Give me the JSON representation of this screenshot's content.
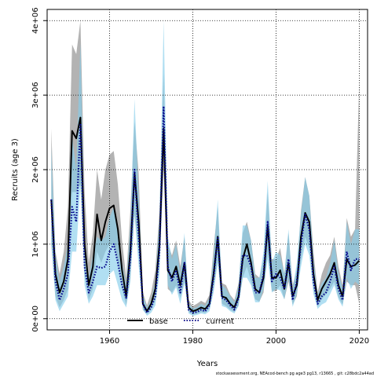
{
  "chart_data": {
    "type": "line",
    "title": "",
    "xlabel": "Years",
    "ylabel": "Recruits (age 3)",
    "xlim": [
      1945,
      2022
    ],
    "ylim": [
      -150000,
      4150000
    ],
    "x_ticks": [
      1960,
      1980,
      2000,
      2020
    ],
    "y_ticks": [
      {
        "value": 0,
        "label": "0e+00"
      },
      {
        "value": 1000000,
        "label": "1e+06"
      },
      {
        "value": 2000000,
        "label": "2e+06"
      },
      {
        "value": 3000000,
        "label": "3e+06"
      },
      {
        "value": 4000000,
        "label": "4e+06"
      }
    ],
    "grid": true,
    "legend_position": "bottom-center",
    "footer": "stockassessment.org,  NEAcod-bench  pg  age3  pg13,  r13665 ,  git:  c28bdc2a44ad",
    "series": [
      {
        "name": "base",
        "style": "solid",
        "color": "#000000",
        "band_color": "#9a9a9a",
        "x": [
          1946,
          1947,
          1948,
          1949,
          1950,
          1951,
          1952,
          1953,
          1954,
          1955,
          1956,
          1957,
          1958,
          1959,
          1960,
          1961,
          1962,
          1963,
          1964,
          1965,
          1966,
          1967,
          1968,
          1969,
          1970,
          1971,
          1972,
          1973,
          1974,
          1975,
          1976,
          1977,
          1978,
          1979,
          1980,
          1981,
          1982,
          1983,
          1984,
          1985,
          1986,
          1987,
          1988,
          1989,
          1990,
          1991,
          1992,
          1993,
          1994,
          1995,
          1996,
          1997,
          1998,
          1999,
          2000,
          2001,
          2002,
          2003,
          2004,
          2005,
          2006,
          2007,
          2008,
          2009,
          2010,
          2011,
          2012,
          2013,
          2014,
          2015,
          2016,
          2017,
          2018,
          2019,
          2020
        ],
        "values": [
          1600000,
          600000,
          350000,
          500000,
          800000,
          2520000,
          2420000,
          2700000,
          1000000,
          450000,
          700000,
          1400000,
          1050000,
          1300000,
          1480000,
          1520000,
          1200000,
          650000,
          300000,
          900000,
          1950000,
          1300000,
          200000,
          100000,
          200000,
          400000,
          1000000,
          2550000,
          650000,
          550000,
          700000,
          450000,
          750000,
          150000,
          100000,
          120000,
          150000,
          130000,
          200000,
          600000,
          1100000,
          300000,
          280000,
          200000,
          150000,
          300000,
          800000,
          1000000,
          750000,
          400000,
          350000,
          550000,
          1250000,
          550000,
          550000,
          650000,
          400000,
          750000,
          300000,
          450000,
          1100000,
          1420000,
          1300000,
          600000,
          250000,
          400000,
          500000,
          600000,
          750000,
          450000,
          300000,
          800000,
          700000,
          720000,
          780000
        ],
        "lower": [
          1000000,
          300000,
          150000,
          250000,
          400000,
          1700000,
          1700000,
          1800000,
          600000,
          250000,
          400000,
          900000,
          750000,
          900000,
          1000000,
          1000000,
          750000,
          400000,
          180000,
          550000,
          1400000,
          900000,
          120000,
          60000,
          120000,
          250000,
          700000,
          2000000,
          400000,
          350000,
          450000,
          280000,
          500000,
          90000,
          60000,
          70000,
          90000,
          80000,
          130000,
          400000,
          800000,
          200000,
          170000,
          120000,
          90000,
          180000,
          550000,
          700000,
          500000,
          260000,
          230000,
          350000,
          900000,
          370000,
          370000,
          450000,
          260000,
          500000,
          190000,
          300000,
          800000,
          1100000,
          950000,
          400000,
          160000,
          260000,
          330000,
          400000,
          500000,
          290000,
          190000,
          500000,
          450000,
          450000,
          200000
        ],
        "upper": [
          2550000,
          900000,
          600000,
          900000,
          1500000,
          3680000,
          3550000,
          4000000,
          1700000,
          750000,
          1150000,
          2000000,
          1600000,
          2000000,
          2200000,
          2250000,
          1800000,
          1050000,
          550000,
          1450000,
          2650000,
          1950000,
          350000,
          180000,
          350000,
          650000,
          1450000,
          3300000,
          1000000,
          850000,
          1050000,
          700000,
          1100000,
          250000,
          170000,
          200000,
          240000,
          210000,
          320000,
          950000,
          1500000,
          480000,
          450000,
          320000,
          250000,
          480000,
          1150000,
          1300000,
          1050000,
          600000,
          550000,
          800000,
          1700000,
          800000,
          800000,
          950000,
          600000,
          1150000,
          450000,
          650000,
          1450000,
          1900000,
          1650000,
          900000,
          350000,
          600000,
          750000,
          850000,
          1100000,
          700000,
          450000,
          1350000,
          1100000,
          1200000,
          3200000
        ]
      },
      {
        "name": "current",
        "style": "dotted",
        "color": "#00008b",
        "band_color": "#87ceeb",
        "x": [
          1946,
          1947,
          1948,
          1949,
          1950,
          1951,
          1952,
          1953,
          1954,
          1955,
          1956,
          1957,
          1958,
          1959,
          1960,
          1961,
          1962,
          1963,
          1964,
          1965,
          1966,
          1967,
          1968,
          1969,
          1970,
          1971,
          1972,
          1973,
          1974,
          1975,
          1976,
          1977,
          1978,
          1979,
          1980,
          1981,
          1982,
          1983,
          1984,
          1985,
          1986,
          1987,
          1988,
          1989,
          1990,
          1991,
          1992,
          1993,
          1994,
          1995,
          1996,
          1997,
          1998,
          1999,
          2000,
          2001,
          2002,
          2003,
          2004,
          2005,
          2006,
          2007,
          2008,
          2009,
          2010,
          2011,
          2012,
          2013,
          2014,
          2015,
          2016,
          2017,
          2018,
          2019,
          2020
        ],
        "values": [
          1600000,
          500000,
          250000,
          400000,
          600000,
          1500000,
          1300000,
          2620000,
          700000,
          350000,
          500000,
          700000,
          680000,
          700000,
          900000,
          1000000,
          750000,
          450000,
          280000,
          800000,
          2000000,
          1100000,
          200000,
          80000,
          150000,
          300000,
          900000,
          2850000,
          700000,
          500000,
          650000,
          350000,
          750000,
          120000,
          80000,
          90000,
          120000,
          100000,
          180000,
          550000,
          1100000,
          280000,
          250000,
          180000,
          120000,
          280000,
          850000,
          850000,
          700000,
          350000,
          350000,
          600000,
          1300000,
          500000,
          600000,
          550000,
          400000,
          800000,
          250000,
          500000,
          1000000,
          1400000,
          1200000,
          500000,
          200000,
          300000,
          350000,
          500000,
          700000,
          400000,
          250000,
          900000,
          650000,
          800000,
          800000
        ],
        "lower": [
          1000000,
          250000,
          100000,
          200000,
          300000,
          900000,
          900000,
          1800000,
          450000,
          200000,
          300000,
          450000,
          450000,
          450000,
          600000,
          650000,
          450000,
          250000,
          150000,
          500000,
          1400000,
          700000,
          120000,
          40000,
          80000,
          180000,
          600000,
          2200000,
          450000,
          320000,
          420000,
          200000,
          480000,
          70000,
          40000,
          50000,
          70000,
          60000,
          100000,
          350000,
          750000,
          170000,
          150000,
          100000,
          70000,
          170000,
          550000,
          550000,
          450000,
          220000,
          220000,
          400000,
          800000,
          350000,
          400000,
          380000,
          260000,
          550000,
          160000,
          330000,
          700000,
          1000000,
          850000,
          330000,
          130000,
          190000,
          220000,
          330000,
          450000,
          260000,
          160000,
          550000,
          400000,
          500000,
          450000
        ],
        "upper": [
          2300000,
          850000,
          500000,
          700000,
          1000000,
          2450000,
          2000000,
          3700000,
          1100000,
          550000,
          850000,
          1100000,
          1050000,
          1100000,
          1350000,
          1500000,
          1150000,
          750000,
          450000,
          1250000,
          2950000,
          1650000,
          320000,
          150000,
          250000,
          500000,
          1350000,
          4000000,
          1100000,
          800000,
          1000000,
          600000,
          1150000,
          200000,
          140000,
          150000,
          200000,
          170000,
          280000,
          850000,
          1600000,
          450000,
          400000,
          300000,
          220000,
          450000,
          1250000,
          1250000,
          1050000,
          550000,
          550000,
          900000,
          1850000,
          750000,
          900000,
          850000,
          600000,
          1200000,
          400000,
          750000,
          1400000,
          1900000,
          1650000,
          800000,
          320000,
          480000,
          550000,
          750000,
          1050000,
          620000,
          400000,
          1300000,
          1000000,
          1200000,
          1200000
        ]
      }
    ]
  },
  "colors": {
    "base_band": "#9a9a9a",
    "current_band": "#87ceeb",
    "base_line": "#000000",
    "current_line": "#00008b",
    "background": "#ffffff",
    "grid": "#000000"
  }
}
